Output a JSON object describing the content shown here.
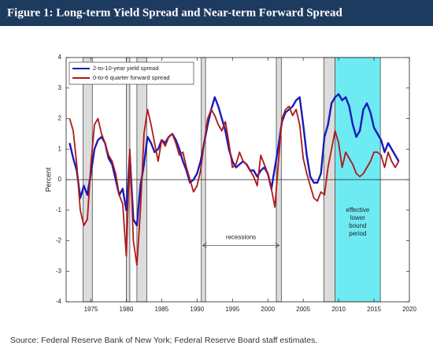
{
  "chart_data": {
    "type": "line",
    "title": "Figure 1: Long-term Yield Spread and Near-term Forward Spread",
    "ylabel": "Percent",
    "source": "Source: Federal Reserve Bank of New York; Federal Reserve Board staff estimates.",
    "x": [
      1972,
      1972.5,
      1973,
      1973.5,
      1974,
      1974.5,
      1975,
      1975.5,
      1976,
      1976.5,
      1977,
      1977.5,
      1978,
      1978.5,
      1979,
      1979.5,
      1980,
      1980.5,
      1981,
      1981.5,
      1982,
      1982.5,
      1983,
      1983.5,
      1984,
      1984.5,
      1985,
      1985.5,
      1986,
      1986.5,
      1987,
      1987.5,
      1988,
      1988.5,
      1989,
      1989.5,
      1990,
      1990.5,
      1991,
      1991.5,
      1992,
      1992.5,
      1993,
      1993.5,
      1994,
      1994.5,
      1995,
      1995.5,
      1996,
      1996.5,
      1997,
      1997.5,
      1998,
      1998.5,
      1999,
      1999.5,
      2000,
      2000.5,
      2001,
      2001.5,
      2002,
      2002.5,
      2003,
      2003.5,
      2004,
      2004.5,
      2005,
      2005.5,
      2006,
      2006.5,
      2007,
      2007.5,
      2008,
      2008.5,
      2009,
      2009.5,
      2010,
      2010.5,
      2011,
      2011.5,
      2012,
      2012.5,
      2013,
      2013.5,
      2014,
      2014.5,
      2015,
      2015.5,
      2016,
      2016.5,
      2017,
      2017.5,
      2018,
      2018.5
    ],
    "series": [
      {
        "name": "2-to-10-year yield spread",
        "color": "#1a1ab8",
        "values": [
          1.2,
          0.7,
          0.3,
          -0.6,
          -0.2,
          -0.5,
          0.2,
          1.0,
          1.3,
          1.4,
          1.2,
          0.7,
          0.5,
          0.0,
          -0.5,
          -0.3,
          -1.0,
          0.8,
          -1.3,
          -1.5,
          -0.2,
          0.5,
          1.4,
          1.2,
          0.9,
          1.0,
          1.3,
          1.2,
          1.4,
          1.5,
          1.3,
          1.0,
          0.6,
          0.3,
          -0.1,
          0.0,
          0.2,
          0.6,
          1.2,
          1.8,
          2.3,
          2.7,
          2.4,
          2.0,
          1.6,
          1.0,
          0.6,
          0.4,
          0.5,
          0.6,
          0.5,
          0.3,
          0.3,
          0.1,
          0.3,
          0.4,
          0.2,
          -0.3,
          0.4,
          1.1,
          1.9,
          2.2,
          2.3,
          2.4,
          2.6,
          2.7,
          1.8,
          0.8,
          0.1,
          -0.1,
          -0.1,
          0.2,
          1.4,
          1.8,
          2.5,
          2.7,
          2.8,
          2.6,
          2.7,
          2.4,
          1.8,
          1.4,
          1.6,
          2.3,
          2.5,
          2.2,
          1.7,
          1.5,
          1.3,
          0.9,
          1.2,
          1.0,
          0.8,
          0.6
        ]
      },
      {
        "name": "0-to-6 quarter forward spread",
        "color": "#b01818",
        "values": [
          2.0,
          1.6,
          0.5,
          -1.0,
          -1.5,
          -1.3,
          0.5,
          1.8,
          2.0,
          1.5,
          1.2,
          0.8,
          0.6,
          0.2,
          -0.5,
          -0.8,
          -2.5,
          1.0,
          -2.0,
          -2.8,
          -1.0,
          1.5,
          2.3,
          1.8,
          1.2,
          0.6,
          1.3,
          1.1,
          1.4,
          1.5,
          1.2,
          0.8,
          0.9,
          0.4,
          0.0,
          -0.4,
          -0.2,
          0.3,
          1.2,
          2.0,
          2.3,
          2.1,
          1.8,
          1.6,
          1.9,
          1.2,
          0.4,
          0.5,
          0.9,
          0.6,
          0.5,
          0.3,
          0.1,
          -0.2,
          0.8,
          0.5,
          0.2,
          -0.3,
          -0.9,
          0.6,
          2.0,
          2.3,
          2.4,
          2.1,
          2.3,
          1.8,
          0.7,
          0.2,
          -0.2,
          -0.6,
          -0.7,
          -0.4,
          -0.5,
          0.4,
          1.0,
          1.6,
          1.2,
          0.4,
          0.9,
          0.7,
          0.5,
          0.2,
          0.1,
          0.2,
          0.4,
          0.6,
          0.9,
          0.9,
          0.8,
          0.4,
          0.9,
          0.6,
          0.4,
          0.6
        ]
      }
    ],
    "recessions": [
      [
        1973.9,
        1975.2
      ],
      [
        1980.0,
        1980.5
      ],
      [
        1981.5,
        1982.9
      ],
      [
        1990.6,
        1991.2
      ],
      [
        2001.2,
        2001.9
      ],
      [
        2007.9,
        2009.5
      ]
    ],
    "lower_bound_period": [
      2009.5,
      2015.9
    ],
    "recession_label": "recessions",
    "lower_bound_label": [
      "effective",
      "lower",
      "bound",
      "period"
    ],
    "xlim": [
      1971.5,
      2020
    ],
    "ylim": [
      -4,
      4
    ],
    "xticks": [
      1975,
      1980,
      1985,
      1990,
      1995,
      2000,
      2005,
      2010,
      2015,
      2020
    ],
    "yticks": [
      -4,
      -3,
      -2,
      -1,
      0,
      1,
      2,
      3,
      4
    ]
  }
}
